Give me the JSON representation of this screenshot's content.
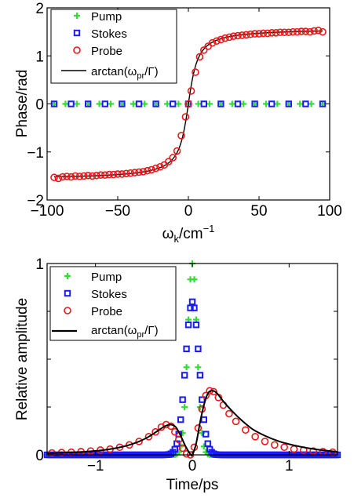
{
  "chart_data": [
    {
      "type": "scatter",
      "xlabel_main": "ω",
      "xlabel_sub": "k",
      "xlabel_rest": "/cm",
      "xlabel_sup": "−1",
      "ylabel": "Phase/rad",
      "xlim": [
        -100,
        100
      ],
      "ylim": [
        -2,
        2
      ],
      "xticks": [
        -100,
        -50,
        0,
        50,
        100
      ],
      "xtick_labels": [
        "−100",
        "−50",
        "0",
        "50",
        "100"
      ],
      "yticks": [
        -2,
        -1,
        0,
        1,
        2
      ],
      "ytick_labels": [
        "−2",
        "−1",
        "0",
        "1",
        "2"
      ],
      "legend_placement": "top-left",
      "legend": {
        "pump": "Pump",
        "stokes": "Stokes",
        "probe": "Probe",
        "fit_pre": "arctan(ω",
        "fit_sub": "pr",
        "fit_post": "/Γ)"
      },
      "colors": {
        "pump": "#33dd33",
        "stokes": "#1a1aff",
        "probe": "#e61a1a",
        "fit": "#000000"
      },
      "series": [
        {
          "key": "pump",
          "marker": "plus",
          "x": [
            -95,
            -87,
            -79,
            -71,
            -63,
            -55,
            -47,
            -39,
            -31,
            -23,
            -15,
            -7,
            0,
            7,
            15,
            23,
            31,
            39,
            47,
            55,
            63,
            71,
            79,
            87,
            95
          ],
          "y": [
            0,
            0,
            0,
            0,
            0,
            0,
            0,
            0,
            0,
            0,
            0,
            0,
            0,
            0,
            0,
            0,
            0,
            0,
            0,
            0,
            0,
            0,
            0,
            0,
            0
          ]
        },
        {
          "key": "stokes",
          "marker": "square",
          "x": [
            -95,
            -83,
            -71,
            -59,
            -47,
            -35,
            -23,
            -11,
            0,
            11,
            23,
            35,
            47,
            59,
            71,
            83,
            95
          ],
          "y": [
            0,
            0,
            0,
            0,
            0,
            0,
            0,
            0,
            0,
            0,
            0,
            0,
            0,
            0,
            0,
            0,
            0
          ]
        },
        {
          "key": "probe",
          "marker": "circle",
          "x": [
            -95,
            -92,
            -89,
            -86,
            -83,
            -80,
            -77,
            -74,
            -71,
            -68,
            -65,
            -62,
            -59,
            -56,
            -53,
            -50,
            -47,
            -44,
            -41,
            -38,
            -35,
            -32,
            -29,
            -26,
            -23,
            -20,
            -17,
            -14,
            -11,
            -8,
            -5,
            -2,
            0,
            2,
            5,
            8,
            11,
            14,
            17,
            20,
            23,
            26,
            29,
            32,
            35,
            38,
            41,
            44,
            47,
            50,
            53,
            56,
            59,
            62,
            65,
            68,
            71,
            74,
            77,
            80,
            83,
            86,
            89,
            92,
            95
          ],
          "y": [
            -1.53,
            -1.55,
            -1.52,
            -1.51,
            -1.52,
            -1.5,
            -1.51,
            -1.5,
            -1.49,
            -1.5,
            -1.49,
            -1.48,
            -1.48,
            -1.47,
            -1.47,
            -1.46,
            -1.46,
            -1.45,
            -1.44,
            -1.43,
            -1.42,
            -1.41,
            -1.39,
            -1.37,
            -1.34,
            -1.31,
            -1.27,
            -1.2,
            -1.12,
            -0.98,
            -0.66,
            -0.27,
            0,
            0.27,
            0.66,
            0.98,
            1.12,
            1.2,
            1.27,
            1.31,
            1.34,
            1.37,
            1.39,
            1.41,
            1.42,
            1.43,
            1.44,
            1.45,
            1.46,
            1.46,
            1.47,
            1.47,
            1.48,
            1.48,
            1.49,
            1.49,
            1.49,
            1.5,
            1.5,
            1.51,
            1.51,
            1.5,
            1.52,
            1.53,
            1.5
          ]
        },
        {
          "key": "fit",
          "line": true,
          "fn": "arctan",
          "gamma": 5,
          "x_range": [
            -95,
            95
          ]
        }
      ]
    },
    {
      "type": "scatter",
      "xlabel": "Time/ps",
      "ylabel": "Relative amplitude",
      "xlim": [
        -1.5,
        1.5
      ],
      "ylim": [
        0,
        1
      ],
      "xticks": [
        -1,
        0,
        1
      ],
      "xtick_labels": [
        "−1",
        "0",
        "1"
      ],
      "yticks": [
        0,
        1
      ],
      "ytick_labels": [
        "0",
        "1"
      ],
      "legend_placement": "top-left",
      "legend": {
        "pump": "Pump",
        "stokes": "Stokes",
        "probe": "Probe",
        "fit_pre": "arctan(ω",
        "fit_sub": "pr",
        "fit_post": "/Γ)"
      },
      "series": [
        {
          "key": "pump",
          "marker": "plus",
          "fn": "gauss",
          "amp": 1.0,
          "sigma": 0.048,
          "x_range": [
            -1.5,
            1.5
          ],
          "step": 0.02
        },
        {
          "key": "stokes",
          "marker": "square",
          "fn": "gauss",
          "amp": 0.8,
          "sigma": 0.07,
          "x_range": [
            -1.5,
            1.5
          ],
          "step": 0.02
        },
        {
          "key": "probe",
          "marker": "circle",
          "x": [
            -1.45,
            -1.35,
            -1.25,
            -1.15,
            -1.05,
            -0.95,
            -0.85,
            -0.75,
            -0.65,
            -0.55,
            -0.45,
            -0.38,
            -0.32,
            -0.27,
            -0.22,
            -0.18,
            -0.14,
            -0.1,
            -0.06,
            -0.02,
            0.02,
            0.06,
            0.1,
            0.14,
            0.18,
            0.22,
            0.27,
            0.32,
            0.38,
            0.45,
            0.55,
            0.65,
            0.75,
            0.85,
            0.95,
            1.05,
            1.15,
            1.25,
            1.35,
            1.45
          ],
          "y": [
            0.01,
            0.012,
            0.014,
            0.017,
            0.02,
            0.025,
            0.03,
            0.04,
            0.052,
            0.07,
            0.095,
            0.12,
            0.145,
            0.158,
            0.15,
            0.12,
            0.08,
            0.035,
            0.005,
            0.0,
            0.04,
            0.14,
            0.24,
            0.31,
            0.335,
            0.33,
            0.3,
            0.26,
            0.215,
            0.175,
            0.13,
            0.095,
            0.07,
            0.052,
            0.04,
            0.03,
            0.025,
            0.02,
            0.017,
            0.014
          ]
        },
        {
          "key": "fit",
          "line": true,
          "x": [
            -1.5,
            -1.3,
            -1.1,
            -0.9,
            -0.7,
            -0.55,
            -0.45,
            -0.35,
            -0.28,
            -0.22,
            -0.17,
            -0.12,
            -0.07,
            -0.02,
            0.0,
            0.04,
            0.08,
            0.12,
            0.16,
            0.2,
            0.25,
            0.32,
            0.4,
            0.5,
            0.62,
            0.75,
            0.9,
            1.05,
            1.2,
            1.35,
            1.5
          ],
          "y": [
            0.008,
            0.012,
            0.017,
            0.026,
            0.045,
            0.07,
            0.095,
            0.128,
            0.15,
            0.158,
            0.145,
            0.1,
            0.045,
            0.004,
            0.0,
            0.06,
            0.17,
            0.26,
            0.32,
            0.335,
            0.325,
            0.28,
            0.235,
            0.185,
            0.135,
            0.1,
            0.07,
            0.05,
            0.035,
            0.024,
            0.016
          ]
        }
      ]
    }
  ]
}
